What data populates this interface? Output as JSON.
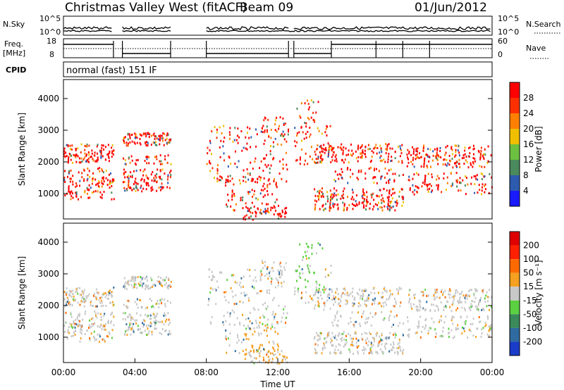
{
  "header": {
    "station": "Christmas Valley West (fitACF)",
    "beam": "Beam 09",
    "date": "01/Jun/2012"
  },
  "strips": {
    "nsky_label": "N.Sky",
    "nsky_ticks": [
      "10^5",
      "10^0"
    ],
    "nsearch_label": "N.Search",
    "nsearch_ticks": [
      "10^5",
      "10^0"
    ],
    "freq_label_1": "Freq.",
    "freq_label_2": "[MHz]",
    "freq_ticks": [
      "18",
      "8"
    ],
    "nave_label": "Nave",
    "nave_ticks": [
      "60",
      "0"
    ],
    "cpid_label": "CPID",
    "cpid_text": "normal (fast) 151 IF"
  },
  "chart_data": [
    {
      "type": "heatmap",
      "name": "power",
      "ylabel": "Slant Range [km]",
      "yticks": [
        "1000",
        "2000",
        "3000",
        "4000"
      ],
      "ylim": [
        200,
        4600
      ],
      "colorbar_label": "Power [dB]",
      "colorbar_ticks": [
        "4",
        "8",
        "12",
        "16",
        "20",
        "24",
        "28"
      ],
      "colors": [
        "#1a1aff",
        "#2d5bb0",
        "#4a8a5c",
        "#6cc040",
        "#f0c000",
        "#ff8000",
        "#ff3000",
        "#ff0000"
      ]
    },
    {
      "type": "heatmap",
      "name": "velocity",
      "ylabel": "Slant Range [km]",
      "yticks": [
        "1000",
        "2000",
        "3000",
        "4000"
      ],
      "ylim": [
        200,
        4600
      ],
      "colorbar_label": "Velocity [m s⁻¹]",
      "colorbar_ticks": [
        "200",
        "100",
        "50",
        "15",
        "-15",
        "-50",
        "-100",
        "-200"
      ],
      "colors": [
        "#1a3cc8",
        "#2f6ba0",
        "#3a8a5a",
        "#5bd040",
        "#c8c8c8",
        "#f5a020",
        "#ff6a00",
        "#ff2000",
        "#e00000"
      ]
    }
  ],
  "xaxis": {
    "label": "Time UT",
    "ticks": [
      "00:00",
      "04:00",
      "08:00",
      "12:00",
      "16:00",
      "20:00",
      "00:00"
    ]
  }
}
